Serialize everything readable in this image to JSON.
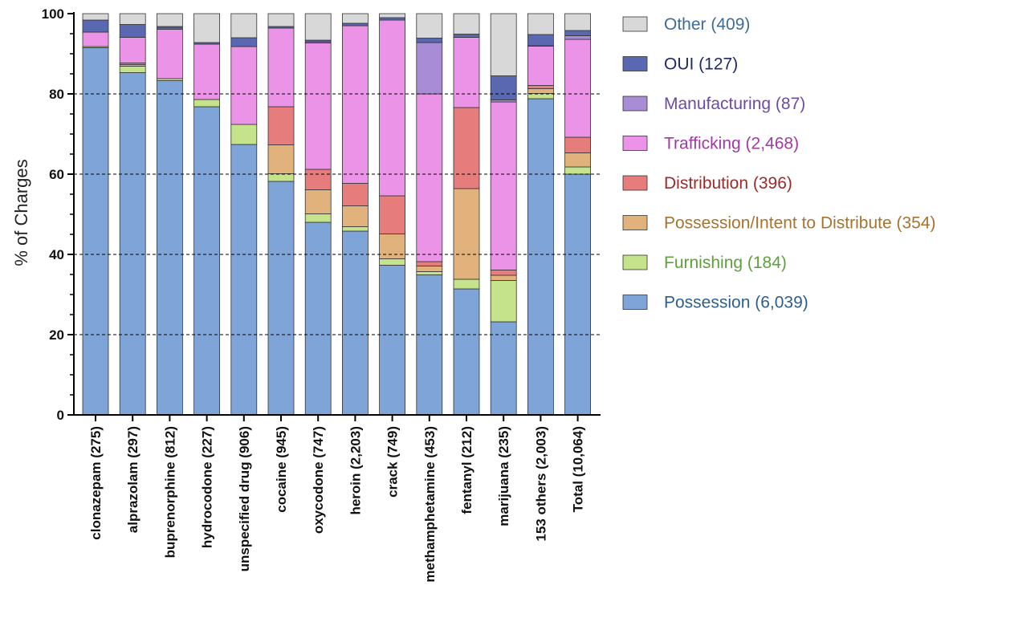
{
  "chart_data": {
    "type": "bar",
    "stacked": true,
    "ylabel": "% of Charges",
    "xlabel": "",
    "ylim": [
      0,
      100
    ],
    "yticks": [
      0,
      20,
      40,
      60,
      80,
      100
    ],
    "gridlines": [
      20,
      40,
      60,
      80
    ],
    "grid": "dashed horizontal at 20, 40, 60, 80",
    "legend_position": "right",
    "categories": [
      "clonazepam (275)",
      "alprazolam (297)",
      "buprenorphine (812)",
      "hydrocodone (227)",
      "unspecified drug (906)",
      "cocaine (945)",
      "oxycodone (747)",
      "heroin (2,203)",
      "crack (749)",
      "methamphetamine (453)",
      "fentanyl (212)",
      "marijuana (235)",
      "153 others (2,003)",
      "Total (10,064)"
    ],
    "series": [
      {
        "name": "Possession (6,039)",
        "fill": "#7fa4d8",
        "text_color": "#2e5e8e",
        "values": [
          91.5,
          85.3,
          83.3,
          76.8,
          67.4,
          58.2,
          48.0,
          45.8,
          37.3,
          34.9,
          31.4,
          23.2,
          78.8,
          60.0
        ]
      },
      {
        "name": "Furnishing (184)",
        "fill": "#c4e38b",
        "text_color": "#5ea03a",
        "values": [
          0.3,
          1.6,
          0.5,
          1.8,
          5.0,
          1.9,
          2.1,
          1.1,
          1.6,
          0.8,
          2.4,
          10.3,
          1.3,
          1.8
        ]
      },
      {
        "name": "Possession/Intent to Distribute (354)",
        "fill": "#e2b27d",
        "text_color": "#a8732e",
        "values": [
          0,
          0.4,
          0,
          0,
          0,
          7.2,
          6.0,
          5.2,
          6.2,
          1.4,
          22.6,
          1.3,
          1.2,
          3.5
        ]
      },
      {
        "name": "Distribution (396)",
        "fill": "#e67c7c",
        "text_color": "#9b2b2b",
        "values": [
          0,
          0.4,
          0,
          0,
          0,
          9.5,
          5.1,
          5.6,
          9.5,
          1.1,
          20.2,
          1.3,
          0.8,
          3.9
        ]
      },
      {
        "name": "Trafficking (2,468)",
        "fill": "#eb93e6",
        "text_color": "#a23aa2",
        "values": [
          3.6,
          6.4,
          12.3,
          13.8,
          19.4,
          19.6,
          31.5,
          39.3,
          43.8,
          41.8,
          17.5,
          41.9,
          9.8,
          24.4
        ]
      },
      {
        "name": "Manufacturing (87)",
        "fill": "#a98cd6",
        "text_color": "#6d4aa8",
        "values": [
          0,
          0,
          0.3,
          0,
          0,
          0,
          0.3,
          0,
          0,
          12.8,
          0,
          0.5,
          0.1,
          0.9
        ]
      },
      {
        "name": "OUI (127)",
        "fill": "#5a67b1",
        "text_color": "#1f2a66",
        "values": [
          3.0,
          3.2,
          0.4,
          0.4,
          2.2,
          0.4,
          0.4,
          0.6,
          0.6,
          1.1,
          0.8,
          6.0,
          2.8,
          1.3
        ]
      },
      {
        "name": "Other (409)",
        "fill": "#d8d8d8",
        "text_color": "#3f6b98",
        "values": [
          1.6,
          2.7,
          3.2,
          7.2,
          6.0,
          3.2,
          6.6,
          2.4,
          1.0,
          6.1,
          5.1,
          15.5,
          5.2,
          4.2
        ]
      }
    ]
  }
}
